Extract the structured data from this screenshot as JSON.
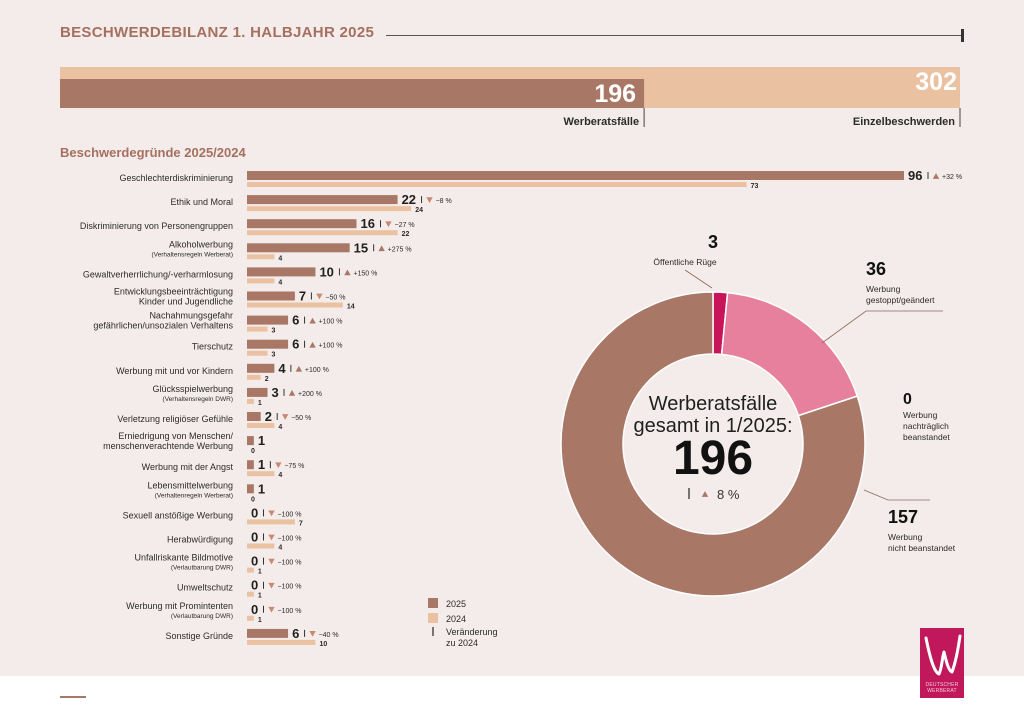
{
  "header": {
    "title": "BESCHWERDEBILANZ 1. HALBJAHR 2025"
  },
  "totals": [
    {
      "value": "196",
      "label": "Werberatsfälle"
    },
    {
      "value": "302",
      "label": "Einzelbeschwerden"
    }
  ],
  "colors": {
    "bar_2025": "#a87766",
    "bar_2024": "#eac2a1",
    "text": "#2b2b2b",
    "accent_heading": "#a5705f",
    "background": "#f4ecea",
    "donut_main": "#a87766",
    "donut_stopped": "#e7809c",
    "donut_public": "#c8155a",
    "logo": "#c0185a"
  },
  "chart_data": [
    {
      "type": "bar",
      "title": "Beschwerdegründe 2025/2024",
      "series": [
        {
          "name": "2025",
          "values": [
            96,
            22,
            16,
            15,
            10,
            7,
            6,
            6,
            4,
            3,
            2,
            1,
            1,
            1,
            0,
            0,
            0,
            0,
            0,
            6
          ]
        },
        {
          "name": "2024",
          "values": [
            73,
            24,
            22,
            4,
            4,
            14,
            3,
            3,
            2,
            1,
            4,
            0,
            4,
            0,
            7,
            4,
            1,
            1,
            1,
            10
          ]
        }
      ],
      "categories": [
        {
          "label": "Geschlechterdiskriminierung",
          "change": "+32 %",
          "dir": "up"
        },
        {
          "label": "Ethik und Moral",
          "change": "−8 %",
          "dir": "down"
        },
        {
          "label": "Diskriminierung von Personengruppen",
          "change": "−27 %",
          "dir": "down"
        },
        {
          "label": "Alkoholwerbung",
          "sub": "(Verhaltensregeln Werberat)",
          "change": "+275 %",
          "dir": "up"
        },
        {
          "label": "Gewaltverherrlichung/-verharmlosung",
          "change": "+150 %",
          "dir": "up"
        },
        {
          "label": "Entwicklungsbeeinträchtigung",
          "label2": "Kinder und Jugendliche",
          "change": "−50 %",
          "dir": "down"
        },
        {
          "label": "Nachahmungsgefahr",
          "label2": "gefährlichen/unsozialen Verhaltens",
          "change": "+100 %",
          "dir": "up"
        },
        {
          "label": "Tierschutz",
          "change": "+100 %",
          "dir": "up"
        },
        {
          "label": "Werbung mit und vor Kindern",
          "change": "+100 %",
          "dir": "up"
        },
        {
          "label": "Glücksspielwerbung",
          "sub": "(Verhaltensregeln DWR)",
          "change": "+200 %",
          "dir": "up"
        },
        {
          "label": "Verletzung religiöser Gefühle",
          "change": "−50 %",
          "dir": "down"
        },
        {
          "label": "Erniedrigung von Menschen/",
          "label2": "menschenverachtende Werbung",
          "change": "",
          "dir": ""
        },
        {
          "label": "Werbung mit der Angst",
          "change": "−75 %",
          "dir": "down"
        },
        {
          "label": "Lebensmittelwerbung",
          "sub": "(Verhaltenregeln Werberat)",
          "change": "",
          "dir": ""
        },
        {
          "label": "Sexuell anstößige Werbung",
          "change": "−100 %",
          "dir": "down"
        },
        {
          "label": "Herabwürdigung",
          "change": "−100 %",
          "dir": "down"
        },
        {
          "label": "Unfallriskante Bildmotive",
          "sub": "(Verlautbarung DWR)",
          "change": "−100 %",
          "dir": "down"
        },
        {
          "label": "Umweltschutz",
          "change": "−100 %",
          "dir": "down"
        },
        {
          "label": "Werbung mit Promintenten",
          "sub": "(Verlautbarung DWR)",
          "change": "−100 %",
          "dir": "down"
        },
        {
          "label": "Sonstige Gründe",
          "change": "−40 %",
          "dir": "down"
        }
      ],
      "xlim": [
        0,
        96
      ],
      "legend": {
        "placement": "bottom-center",
        "items": [
          {
            "key": "bar_2025",
            "label": "2025"
          },
          {
            "key": "bar_2024",
            "label": "2024"
          },
          {
            "key": "change",
            "label": "Veränderung",
            "label2": "zu 2024"
          }
        ]
      }
    },
    {
      "type": "pie",
      "donut": true,
      "center": {
        "line1": "Werberatsfälle",
        "line2": "gesamt in 1/2025:",
        "value": "196",
        "change": "8 %",
        "dir": "up"
      },
      "segments": [
        {
          "value": 3,
          "value_label": "3",
          "label": "Öffentliche Rüge",
          "color_key": "donut_public"
        },
        {
          "value": 36,
          "value_label": "36",
          "label": "Werbung",
          "label2": "gestoppt/geändert",
          "color_key": "donut_stopped"
        },
        {
          "value": 0,
          "value_label": "0",
          "label": "Werbung",
          "label2": "nachträglich",
          "label3": "beanstandet",
          "color_key": "donut_main"
        },
        {
          "value": 157,
          "value_label": "157",
          "label": "Werbung",
          "label2": "nicht beanstandet",
          "color_key": "donut_main"
        }
      ]
    }
  ],
  "logo": {
    "line1": "DEUTSCHER",
    "line2": "WERBERAT"
  }
}
